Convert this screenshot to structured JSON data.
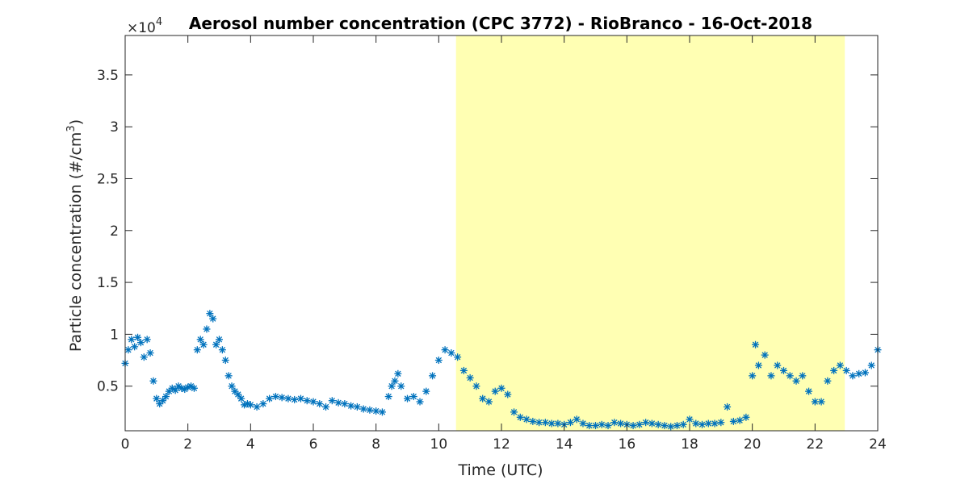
{
  "chart_data": {
    "type": "scatter",
    "title": "Aerosol number concentration (CPC 3772) - RioBranco - 16-Oct-2018",
    "xlabel": "Time (UTC)",
    "ylabel_main": "Particle concentration (#/cm",
    "ylabel_sup": "3",
    "ylabel_close": ")",
    "y_exponent_label": "×10",
    "y_exponent_power": "4",
    "xlim": [
      0,
      24
    ],
    "ylim": [
      0.07,
      3.88
    ],
    "y_scale_note": "values in units of 10^4 #/cm3",
    "xticks": [
      0,
      2,
      4,
      6,
      8,
      10,
      12,
      14,
      16,
      18,
      20,
      22,
      24
    ],
    "xtick_labels": [
      "0",
      "2",
      "4",
      "6",
      "8",
      "10",
      "12",
      "14",
      "16",
      "18",
      "20",
      "22",
      "24"
    ],
    "yticks": [
      0.5,
      1,
      1.5,
      2,
      2.5,
      3,
      3.5
    ],
    "ytick_labels": [
      "0.5",
      "1",
      "1.5",
      "2",
      "2.5",
      "3",
      "3.5"
    ],
    "grid": false,
    "marker": "asterisk",
    "series_color": "#0072BD",
    "highlight_span": {
      "x": [
        10.55,
        22.95
      ],
      "color": "#FFFFB3"
    },
    "series": [
      {
        "values": [
          [
            0.0,
            0.72
          ],
          [
            0.1,
            0.85
          ],
          [
            0.2,
            0.95
          ],
          [
            0.3,
            0.88
          ],
          [
            0.4,
            0.97
          ],
          [
            0.5,
            0.92
          ],
          [
            0.6,
            0.78
          ],
          [
            0.7,
            0.95
          ],
          [
            0.8,
            0.82
          ],
          [
            0.9,
            0.55
          ],
          [
            1.0,
            0.38
          ],
          [
            1.1,
            0.33
          ],
          [
            1.2,
            0.36
          ],
          [
            1.3,
            0.4
          ],
          [
            1.4,
            0.45
          ],
          [
            1.5,
            0.48
          ],
          [
            1.6,
            0.46
          ],
          [
            1.7,
            0.5
          ],
          [
            1.8,
            0.48
          ],
          [
            1.9,
            0.47
          ],
          [
            2.0,
            0.49
          ],
          [
            2.1,
            0.5
          ],
          [
            2.2,
            0.48
          ],
          [
            2.3,
            0.85
          ],
          [
            2.4,
            0.95
          ],
          [
            2.5,
            0.9
          ],
          [
            2.6,
            1.05
          ],
          [
            2.7,
            1.2
          ],
          [
            2.8,
            1.15
          ],
          [
            2.9,
            0.9
          ],
          [
            3.0,
            0.95
          ],
          [
            3.1,
            0.85
          ],
          [
            3.2,
            0.75
          ],
          [
            3.3,
            0.6
          ],
          [
            3.4,
            0.5
          ],
          [
            3.5,
            0.45
          ],
          [
            3.6,
            0.42
          ],
          [
            3.7,
            0.38
          ],
          [
            3.8,
            0.32
          ],
          [
            3.9,
            0.33
          ],
          [
            4.0,
            0.32
          ],
          [
            4.2,
            0.3
          ],
          [
            4.4,
            0.33
          ],
          [
            4.6,
            0.38
          ],
          [
            4.8,
            0.4
          ],
          [
            5.0,
            0.39
          ],
          [
            5.2,
            0.38
          ],
          [
            5.4,
            0.37
          ],
          [
            5.6,
            0.38
          ],
          [
            5.8,
            0.36
          ],
          [
            6.0,
            0.35
          ],
          [
            6.2,
            0.33
          ],
          [
            6.4,
            0.3
          ],
          [
            6.6,
            0.36
          ],
          [
            6.8,
            0.34
          ],
          [
            7.0,
            0.33
          ],
          [
            7.2,
            0.31
          ],
          [
            7.4,
            0.3
          ],
          [
            7.6,
            0.28
          ],
          [
            7.8,
            0.27
          ],
          [
            8.0,
            0.26
          ],
          [
            8.2,
            0.25
          ],
          [
            8.4,
            0.4
          ],
          [
            8.5,
            0.5
          ],
          [
            8.6,
            0.55
          ],
          [
            8.7,
            0.62
          ],
          [
            8.8,
            0.5
          ],
          [
            9.0,
            0.38
          ],
          [
            9.2,
            0.4
          ],
          [
            9.4,
            0.35
          ],
          [
            9.6,
            0.45
          ],
          [
            9.8,
            0.6
          ],
          [
            10.0,
            0.75
          ],
          [
            10.2,
            0.85
          ],
          [
            10.4,
            0.82
          ],
          [
            10.6,
            0.78
          ],
          [
            10.8,
            0.65
          ],
          [
            11.0,
            0.58
          ],
          [
            11.2,
            0.5
          ],
          [
            11.4,
            0.38
          ],
          [
            11.6,
            0.35
          ],
          [
            11.8,
            0.45
          ],
          [
            12.0,
            0.48
          ],
          [
            12.2,
            0.42
          ],
          [
            12.4,
            0.25
          ],
          [
            12.6,
            0.2
          ],
          [
            12.8,
            0.18
          ],
          [
            13.0,
            0.16
          ],
          [
            13.2,
            0.15
          ],
          [
            13.4,
            0.15
          ],
          [
            13.6,
            0.14
          ],
          [
            13.8,
            0.14
          ],
          [
            14.0,
            0.13
          ],
          [
            14.2,
            0.15
          ],
          [
            14.4,
            0.18
          ],
          [
            14.6,
            0.14
          ],
          [
            14.8,
            0.12
          ],
          [
            15.0,
            0.12
          ],
          [
            15.2,
            0.13
          ],
          [
            15.4,
            0.12
          ],
          [
            15.6,
            0.15
          ],
          [
            15.8,
            0.14
          ],
          [
            16.0,
            0.13
          ],
          [
            16.2,
            0.12
          ],
          [
            16.4,
            0.13
          ],
          [
            16.6,
            0.15
          ],
          [
            16.8,
            0.14
          ],
          [
            17.0,
            0.13
          ],
          [
            17.2,
            0.12
          ],
          [
            17.4,
            0.11
          ],
          [
            17.6,
            0.12
          ],
          [
            17.8,
            0.13
          ],
          [
            18.0,
            0.18
          ],
          [
            18.2,
            0.14
          ],
          [
            18.4,
            0.13
          ],
          [
            18.6,
            0.14
          ],
          [
            18.8,
            0.14
          ],
          [
            19.0,
            0.15
          ],
          [
            19.2,
            0.3
          ],
          [
            19.4,
            0.16
          ],
          [
            19.6,
            0.17
          ],
          [
            19.8,
            0.2
          ],
          [
            20.0,
            0.6
          ],
          [
            20.1,
            0.9
          ],
          [
            20.2,
            0.7
          ],
          [
            20.4,
            0.8
          ],
          [
            20.6,
            0.6
          ],
          [
            20.8,
            0.7
          ],
          [
            21.0,
            0.65
          ],
          [
            21.2,
            0.6
          ],
          [
            21.4,
            0.55
          ],
          [
            21.6,
            0.6
          ],
          [
            21.8,
            0.45
          ],
          [
            22.0,
            0.35
          ],
          [
            22.2,
            0.35
          ],
          [
            22.4,
            0.55
          ],
          [
            22.6,
            0.65
          ],
          [
            22.8,
            0.7
          ],
          [
            23.0,
            0.65
          ],
          [
            23.2,
            0.6
          ],
          [
            23.4,
            0.62
          ],
          [
            23.6,
            0.63
          ],
          [
            23.8,
            0.7
          ],
          [
            24.0,
            0.85
          ]
        ]
      }
    ]
  }
}
